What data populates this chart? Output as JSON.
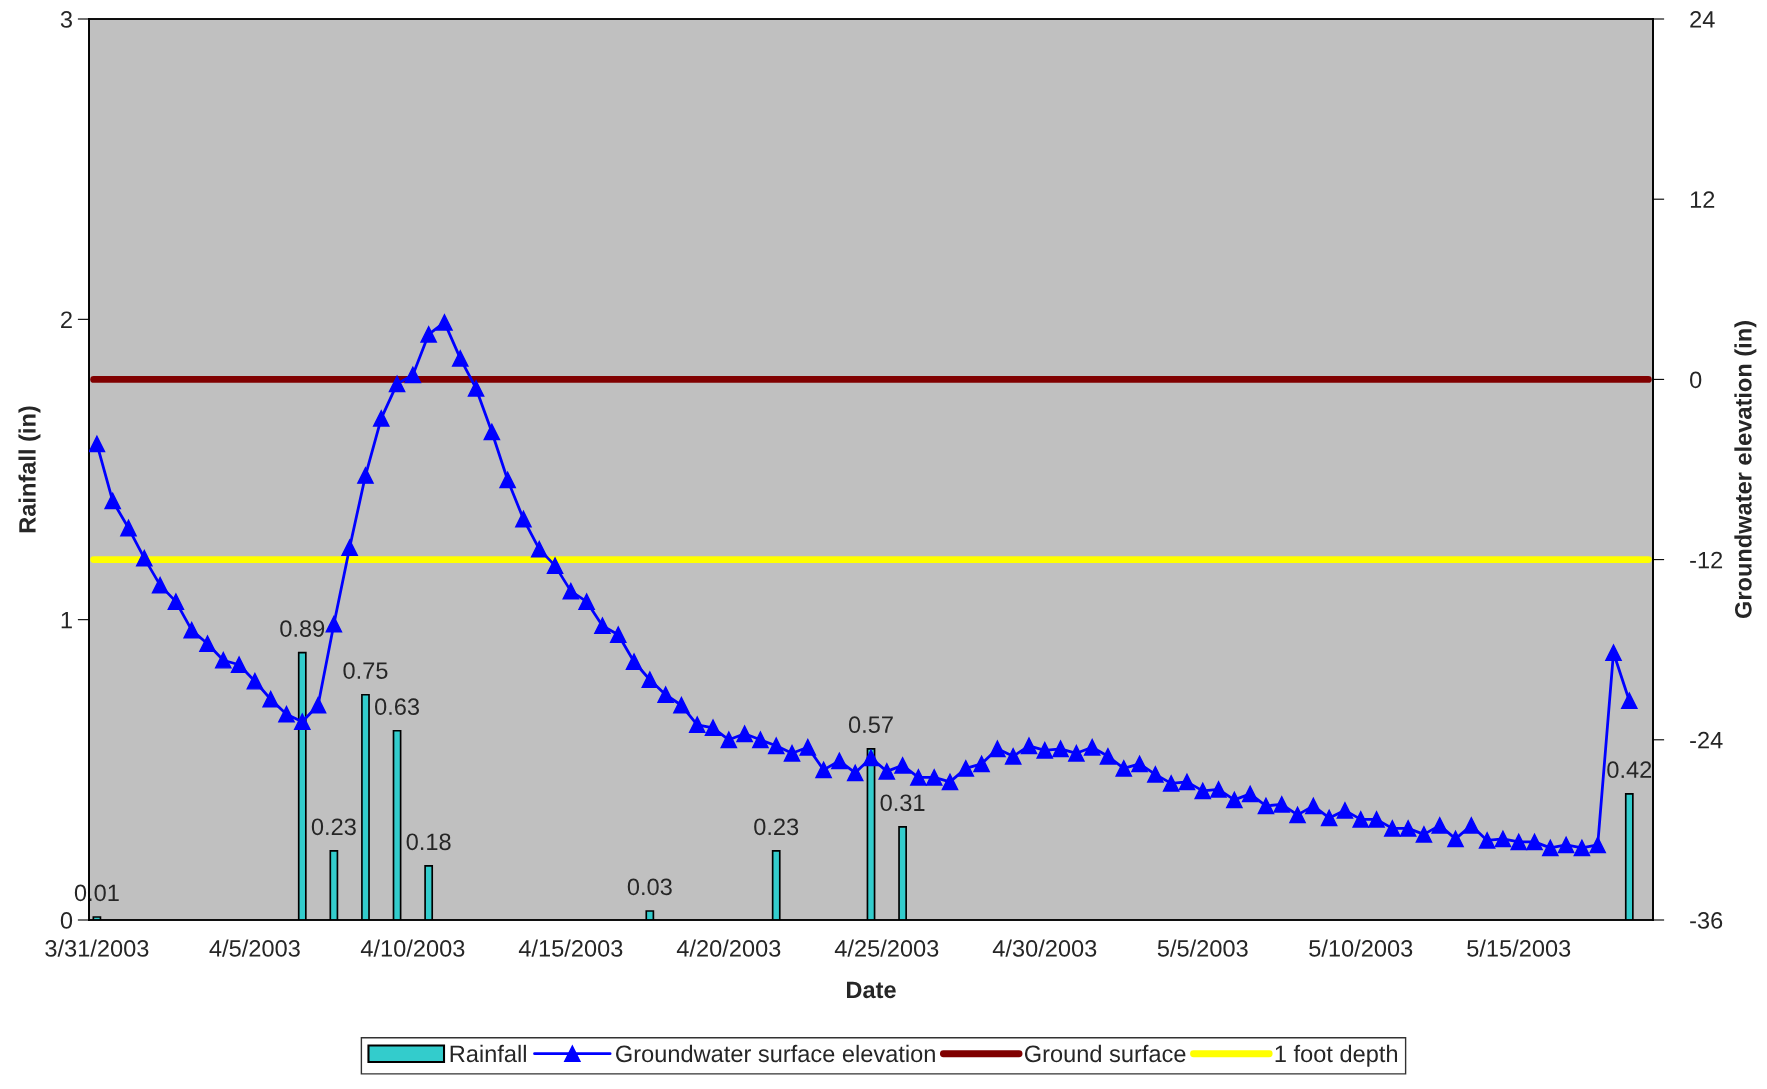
{
  "chart_data": {
    "type": "bar",
    "xlabel": "Date",
    "ylabel": "Rainfall (in)",
    "y2label": "Groundwater elevation (in)",
    "categories": [
      "3/31/2003",
      null,
      null,
      null,
      null,
      null,
      null,
      null,
      null,
      null,
      "4/5/2003",
      null,
      null,
      null,
      null,
      null,
      null,
      null,
      null,
      null,
      "4/10/2003",
      null,
      null,
      null,
      null,
      null,
      null,
      null,
      null,
      null,
      "4/15/2003",
      null,
      null,
      null,
      null,
      null,
      null,
      null,
      null,
      null,
      "4/20/2003",
      null,
      null,
      null,
      null,
      null,
      null,
      null,
      null,
      null,
      "4/25/2003",
      null,
      null,
      null,
      null,
      null,
      null,
      null,
      null,
      null,
      "4/30/2003",
      null,
      null,
      null,
      null,
      null,
      null,
      null,
      null,
      null,
      "5/5/2003",
      null,
      null,
      null,
      null,
      null,
      null,
      null,
      null,
      null,
      "5/10/2003",
      null,
      null,
      null,
      null,
      null,
      null,
      null,
      null,
      null,
      "5/15/2003",
      null,
      null,
      null,
      null,
      null,
      null,
      null,
      null
    ],
    "series": [
      {
        "name": "Rainfall",
        "color": "#33cccc",
        "values": [
          0.01,
          null,
          null,
          null,
          null,
          null,
          null,
          null,
          null,
          null,
          null,
          null,
          null,
          0.89,
          null,
          0.23,
          null,
          0.75,
          null,
          0.63,
          null,
          0.18,
          null,
          null,
          null,
          null,
          null,
          null,
          null,
          null,
          null,
          null,
          null,
          null,
          null,
          0.03,
          null,
          null,
          null,
          null,
          null,
          null,
          null,
          0.23,
          null,
          null,
          null,
          null,
          null,
          0.57,
          null,
          0.31,
          null,
          null,
          null,
          null,
          null,
          null,
          null,
          null,
          null,
          null,
          null,
          null,
          null,
          null,
          null,
          null,
          null,
          null,
          null,
          null,
          null,
          null,
          null,
          null,
          null,
          null,
          null,
          null,
          null,
          null,
          null,
          null,
          null,
          null,
          null,
          null,
          null,
          null,
          null,
          null,
          null,
          null,
          null,
          null,
          null,
          0.42,
          null
        ],
        "value_labels": [
          "0.01",
          null,
          null,
          null,
          null,
          null,
          null,
          null,
          null,
          null,
          null,
          null,
          null,
          "0.89",
          null,
          "0.23",
          null,
          "0.75",
          null,
          "0.63",
          null,
          "0.18",
          null,
          null,
          null,
          null,
          null,
          null,
          null,
          null,
          null,
          null,
          null,
          null,
          null,
          "0.03",
          null,
          null,
          null,
          null,
          null,
          null,
          null,
          "0.23",
          null,
          null,
          null,
          null,
          null,
          "0.57",
          null,
          "0.31",
          null,
          null,
          null,
          null,
          null,
          null,
          null,
          null,
          null,
          null,
          null,
          null,
          null,
          null,
          null,
          null,
          null,
          null,
          null,
          null,
          null,
          null,
          null,
          null,
          null,
          null,
          null,
          null,
          null,
          null,
          null,
          null,
          null,
          null,
          null,
          null,
          null,
          null,
          null,
          null,
          null,
          null,
          null,
          null,
          null,
          "0.42",
          null
        ]
      },
      {
        "name": "Groundwater surface elevation",
        "type": "line",
        "axis": "y2",
        "color": "#0000ff",
        "marker": "triangle",
        "line_style": "solid",
        "values": [
          -4.3,
          -8.1,
          -9.9,
          -11.9,
          -13.7,
          -14.8,
          -16.7,
          -17.6,
          -18.7,
          -19.0,
          -20.1,
          -21.3,
          -22.3,
          -22.8,
          -21.7,
          -16.3,
          -11.2,
          -6.4,
          -2.6,
          -0.3,
          0.3,
          3.0,
          3.8,
          1.4,
          -0.6,
          -3.5,
          -6.7,
          -9.3,
          -11.3,
          -12.4,
          -14.1,
          -14.8,
          -16.4,
          -17.0,
          -18.8,
          -20.0,
          -21.0,
          -21.7,
          -23.0,
          -23.2,
          -24.0,
          -23.6,
          -24.0,
          -24.4,
          -24.9,
          -24.5,
          -26.0,
          -25.4,
          -26.2,
          -25.2,
          -26.1,
          -25.7,
          -26.5,
          -26.5,
          -26.8,
          -25.9,
          -25.6,
          -24.6,
          -25.1,
          -24.4,
          -24.7,
          -24.6,
          -24.9,
          -24.5,
          -25.1,
          -25.9,
          -25.6,
          -26.3,
          -26.9,
          -26.8,
          -27.4,
          -27.3,
          -28.0,
          -27.6,
          -28.4,
          -28.3,
          -29.0,
          -28.4,
          -29.2,
          -28.7,
          -29.3,
          -29.3,
          -29.9,
          -29.9,
          -30.3,
          -29.7,
          -30.6,
          -29.7,
          -30.7,
          -30.6,
          -30.8,
          -30.8,
          -31.2,
          -31.0,
          -31.2,
          -31.0,
          -18.2,
          -21.4,
          null
        ]
      }
    ],
    "ref_lines": [
      {
        "axis": "y2",
        "value": 0,
        "label": "Ground surface",
        "color": "#800000",
        "line_style": "solid"
      },
      {
        "axis": "y2",
        "value": -12,
        "label": "1 foot depth",
        "color": "#ffff00",
        "line_style": "solid"
      }
    ],
    "ylim": [
      0,
      3
    ],
    "yticks": [
      0,
      1,
      2,
      3
    ],
    "y2lim": [
      -36,
      24
    ],
    "y2ticks": [
      -36,
      -24,
      -12,
      0,
      12,
      24
    ],
    "grid": false,
    "legend": "bottom"
  }
}
